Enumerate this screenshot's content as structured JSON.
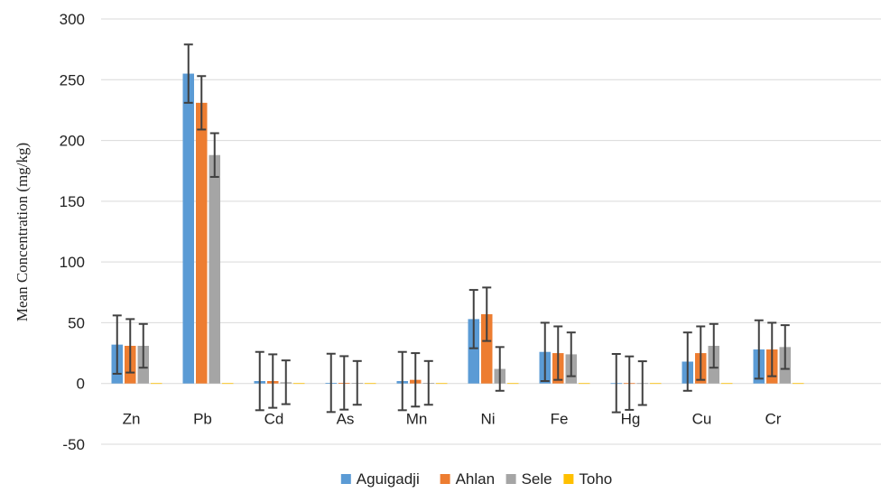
{
  "chart_data": {
    "type": "bar",
    "title": "",
    "xlabel": "",
    "ylabel": "Mean Concentration (mg/kg)",
    "ylim": [
      -50,
      300
    ],
    "yticks": [
      -50,
      0,
      50,
      100,
      150,
      200,
      250,
      300
    ],
    "grid": "horizontal",
    "legend_position": "bottom",
    "error_bars": true,
    "categories": [
      "Zn",
      "Pb",
      "Cd",
      "As",
      "Mn",
      "Ni",
      "Fe",
      "Hg",
      "Cu",
      "Cr"
    ],
    "series": [
      {
        "name": "Aguigadji",
        "color": "#5B9BD5",
        "values": [
          32,
          255,
          2,
          0.5,
          2,
          53,
          26,
          0.3,
          18,
          28
        ],
        "errors": [
          24,
          24,
          24,
          24,
          24,
          24,
          24,
          24,
          24,
          24
        ]
      },
      {
        "name": "Ahlan",
        "color": "#ED7D31",
        "values": [
          31,
          231,
          2,
          0.5,
          3,
          57,
          25,
          0.3,
          25,
          28
        ],
        "errors": [
          22,
          22,
          22,
          22,
          22,
          22,
          22,
          22,
          22,
          22
        ]
      },
      {
        "name": "Sele",
        "color": "#A5A5A5",
        "values": [
          31,
          188,
          1,
          0.5,
          0.5,
          12,
          24,
          0.3,
          31,
          30
        ],
        "errors": [
          18,
          18,
          18,
          18,
          18,
          18,
          18,
          18,
          18,
          18
        ]
      },
      {
        "name": "Toho",
        "color": "#FFC000",
        "values": [
          0.3,
          0.3,
          0.3,
          0.3,
          0.3,
          0.3,
          0.3,
          0.3,
          0.3,
          0.3
        ],
        "errors": [
          0,
          0,
          0,
          0,
          0,
          0,
          0,
          0,
          0,
          0
        ]
      }
    ]
  }
}
